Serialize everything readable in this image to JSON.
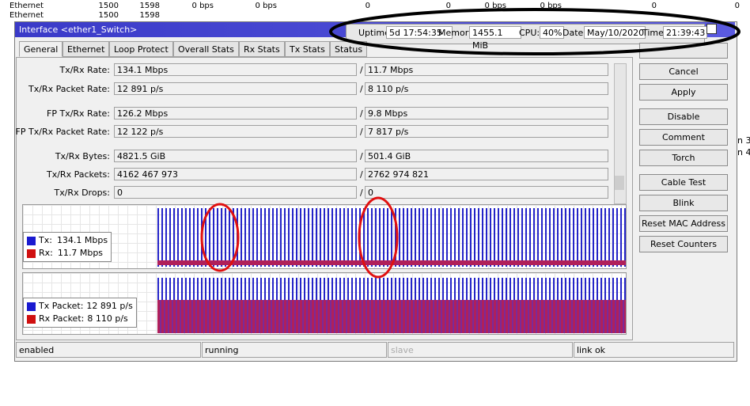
{
  "background_table": {
    "rows": [
      [
        "Ethernet",
        "1500",
        "1598",
        "0 bps",
        "0 bps",
        "0",
        "0",
        "0 bps",
        "0 bps",
        "0",
        "0"
      ],
      [
        "Ethernet",
        "1500",
        "1598"
      ]
    ],
    "side_right": [
      "n 3",
      "n 4"
    ]
  },
  "window": {
    "title": "Interface <ether1_Switch>"
  },
  "status": {
    "items": [
      {
        "label": "Uptime:",
        "value": "5d 17:54:35"
      },
      {
        "label": "Memory:",
        "value": "1455.1 MiB"
      },
      {
        "label": "CPU:",
        "value": "40%"
      },
      {
        "label": "Date:",
        "value": "May/10/2020"
      },
      {
        "label": "Time:",
        "value": "21:39:43"
      }
    ]
  },
  "tabs": [
    "General",
    "Ethernet",
    "Loop Protect",
    "Overall Stats",
    "Rx Stats",
    "Tx Stats",
    "Status"
  ],
  "separator": "/",
  "fields": [
    {
      "label": "Tx/Rx Rate:",
      "tx": "134.1 Mbps",
      "rx": "11.7 Mbps"
    },
    {
      "label": "Tx/Rx Packet Rate:",
      "tx": "12 891 p/s",
      "rx": "8 110 p/s"
    },
    {
      "label": "FP Tx/Rx Rate:",
      "tx": "126.2 Mbps",
      "rx": "9.8 Mbps"
    },
    {
      "label": "FP Tx/Rx Packet Rate:",
      "tx": "12 122 p/s",
      "rx": "7 817 p/s"
    },
    {
      "label": "Tx/Rx Bytes:",
      "tx": "4821.5 GiB",
      "rx": "501.4 GiB"
    },
    {
      "label": "Tx/Rx Packets:",
      "tx": "4162 467 973",
      "rx": "2762 974 821"
    },
    {
      "label": "Tx/Rx Drops:",
      "tx": "0",
      "rx": "0"
    }
  ],
  "buttons": [
    "Cancel",
    "Apply",
    "Disable",
    "Comment",
    "Torch",
    "Cable Test",
    "Blink",
    "Reset MAC Address",
    "Reset Counters"
  ],
  "graphs": [
    {
      "legend": [
        {
          "label": "Tx:",
          "value": "134.1 Mbps"
        },
        {
          "label": "Rx:",
          "value": "11.7 Mbps"
        }
      ]
    },
    {
      "legend": [
        {
          "label": "Tx Packet:",
          "value": "12 891 p/s"
        },
        {
          "label": "Rx Packet:",
          "value": "8 110 p/s"
        }
      ]
    }
  ],
  "footer": [
    "enabled",
    "running",
    "slave",
    "link ok"
  ]
}
